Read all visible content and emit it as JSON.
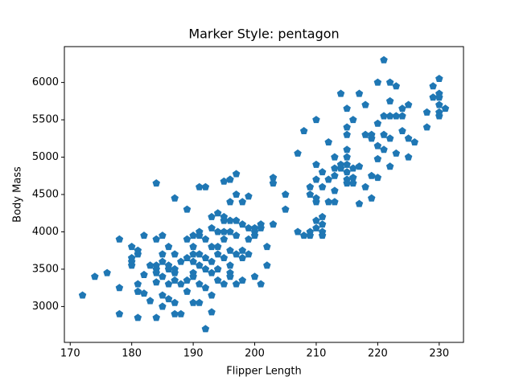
{
  "chart_data": {
    "type": "scatter",
    "title": "Marker Style: pentagon",
    "x_label": "Flipper Length",
    "y_label": "Body Mass",
    "marker": "pentagon",
    "color": "#1f77b4",
    "x": [
      172,
      174,
      176,
      178,
      178,
      178,
      180,
      180,
      180,
      180,
      181,
      181,
      181,
      181,
      181,
      182,
      182,
      182,
      183,
      183,
      184,
      184,
      184,
      184,
      184,
      184,
      184,
      185,
      185,
      185,
      185,
      185,
      185,
      186,
      186,
      186,
      186,
      186,
      187,
      187,
      187,
      187,
      187,
      187,
      187,
      188,
      188,
      188,
      189,
      189,
      189,
      189,
      189,
      190,
      190,
      190,
      190,
      190,
      190,
      190,
      191,
      191,
      191,
      191,
      191,
      191,
      191,
      192,
      192,
      192,
      192,
      192,
      192,
      193,
      193,
      193,
      193,
      193,
      193,
      193,
      194,
      194,
      194,
      194,
      194,
      194,
      195,
      195,
      195,
      195,
      195,
      195,
      195,
      196,
      196,
      196,
      196,
      196,
      196,
      196,
      196,
      197,
      197,
      197,
      197,
      197,
      197,
      198,
      198,
      198,
      198,
      198,
      199,
      199,
      199,
      199,
      200,
      200,
      200,
      200,
      201,
      201,
      201,
      202,
      202,
      203,
      203,
      203,
      205,
      205,
      207,
      207,
      208,
      208,
      209,
      209,
      209,
      209,
      210,
      210,
      210,
      210,
      210,
      210,
      210,
      211,
      211,
      211,
      211,
      211,
      211,
      212,
      212,
      212,
      213,
      213,
      213,
      213,
      213,
      214,
      214,
      214,
      215,
      215,
      215,
      215,
      215,
      215,
      215,
      215,
      215,
      216,
      216,
      216,
      216,
      217,
      217,
      217,
      218,
      218,
      218,
      219,
      219,
      219,
      219,
      220,
      220,
      220,
      220,
      220,
      221,
      221,
      221,
      221,
      222,
      222,
      222,
      222,
      222,
      223,
      223,
      223,
      224,
      224,
      224,
      225,
      225,
      225,
      226,
      228,
      228,
      229,
      229,
      230,
      230,
      230,
      230,
      230,
      230,
      231
    ],
    "values": [
      3150,
      3400,
      3450,
      3900,
      3250,
      2900,
      3600,
      3550,
      3650,
      3800,
      3300,
      3700,
      3750,
      3200,
      2850,
      3175,
      3425,
      3950,
      3550,
      3075,
      3900,
      4650,
      3550,
      3500,
      3450,
      3325,
      2850,
      3700,
      3950,
      3600,
      3400,
      3150,
      3000,
      3800,
      3550,
      3500,
      3300,
      3100,
      4450,
      3700,
      3500,
      3450,
      3350,
      3050,
      2900,
      3600,
      3300,
      2900,
      4300,
      3900,
      3650,
      3350,
      3200,
      3950,
      3800,
      3700,
      3600,
      3450,
      3400,
      3050,
      4600,
      4000,
      3950,
      3700,
      3550,
      3300,
      3050,
      4600,
      3900,
      3650,
      3500,
      3250,
      2700,
      4200,
      4050,
      3800,
      3600,
      3450,
      3150,
      2925,
      4250,
      4000,
      3800,
      3700,
      3500,
      3350,
      4200,
      4150,
      4000,
      3900,
      3650,
      3300,
      4675,
      4700,
      4400,
      4150,
      4000,
      3750,
      3550,
      3450,
      3400,
      4775,
      4500,
      4150,
      3950,
      3700,
      3300,
      4400,
      4100,
      3750,
      3650,
      3350,
      4475,
      3900,
      4050,
      3700,
      4000,
      3950,
      4050,
      3400,
      4050,
      4100,
      3300,
      3550,
      3800,
      4725,
      4650,
      4100,
      4500,
      4300,
      4000,
      5050,
      3950,
      5350,
      4000,
      4500,
      4600,
      3950,
      5500,
      4700,
      4400,
      4450,
      4050,
      4150,
      4900,
      4800,
      4600,
      4200,
      4000,
      3950,
      4100,
      5200,
      4700,
      4400,
      4850,
      4750,
      5000,
      4550,
      4400,
      5850,
      4850,
      4900,
      5650,
      5400,
      5300,
      5100,
      5000,
      4900,
      4800,
      4700,
      4650,
      5500,
      4725,
      4850,
      4650,
      5850,
      4875,
      4375,
      5700,
      5300,
      4600,
      5250,
      4750,
      5300,
      4450,
      6000,
      5450,
      5150,
      4975,
      4725,
      6300,
      5550,
      5300,
      5100,
      6000,
      5750,
      5550,
      5250,
      4875,
      5950,
      5550,
      5050,
      5650,
      5550,
      5350,
      5700,
      5250,
      5000,
      5200,
      5600,
      5400,
      5950,
      5800,
      6050,
      5850,
      5800,
      5700,
      5600,
      5550,
      5650
    ],
    "xlim": [
      169.05,
      233.95
    ],
    "ylim": [
      2520,
      6480
    ],
    "xticks": [
      170,
      180,
      190,
      200,
      210,
      220,
      230
    ],
    "yticks": [
      3000,
      3500,
      4000,
      4500,
      5000,
      5500,
      6000
    ]
  }
}
